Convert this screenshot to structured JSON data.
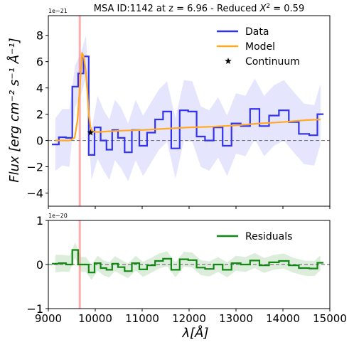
{
  "chart_data": [
    {
      "type": "line",
      "title": "MSA ID:1142 at z = 6.96 - Reduced X² = 0.59",
      "title_parts": {
        "pre": "MSA ID:1142 at z = 6.96 - Reduced ",
        "chi": "X",
        "sup": "2",
        "post": " = 0.59"
      },
      "xlabel": "",
      "ylabel": "Flux [erg cm⁻² s⁻¹ Å⁻¹]",
      "scale_note": "1e−21",
      "xlim": [
        9000,
        15000
      ],
      "ylim": [
        -5,
        9.5
      ],
      "yticks": [
        -4,
        -2,
        0,
        2,
        4,
        6,
        8
      ],
      "vline_x": 9670,
      "zero_line": 0,
      "grid": false,
      "legend_position": "top-right",
      "series": [
        {
          "name": "Data",
          "color": "#3333ee",
          "style": "steps-mid",
          "x": [
            9150,
            9300,
            9450,
            9570,
            9700,
            9800,
            9920,
            10050,
            10180,
            10300,
            10420,
            10550,
            10700,
            10860,
            11020,
            11190,
            11360,
            11530,
            11710,
            11890,
            12070,
            12250,
            12430,
            12620,
            12810,
            13000,
            13200,
            13400,
            13600,
            13810,
            14020,
            14230,
            14450,
            14670,
            14800
          ],
          "y": [
            -0.3,
            0.25,
            0.2,
            4.1,
            5.1,
            6.4,
            -1.1,
            1.0,
            0.0,
            -0.7,
            0.8,
            0.2,
            -0.9,
            0.8,
            -0.4,
            0.6,
            1.6,
            2.2,
            -0.6,
            2.3,
            2.2,
            0.3,
            0.0,
            1.0,
            -0.4,
            1.3,
            1.1,
            2.4,
            1.1,
            1.9,
            2.3,
            1.4,
            0.5,
            0.4,
            2.0
          ],
          "err_lo": [
            -2.3,
            -1.9,
            -2.0,
            2.5,
            3.5,
            4.8,
            -3.0,
            -1.4,
            -2.3,
            -3.0,
            -1.5,
            -2.1,
            -3.1,
            -1.5,
            -2.7,
            -1.7,
            -0.7,
            -0.1,
            -2.9,
            0.0,
            -0.1,
            -2.0,
            -2.3,
            -1.3,
            -2.7,
            -1.0,
            -1.2,
            0.1,
            -1.2,
            -0.4,
            0.0,
            -0.9,
            -1.8,
            -1.9,
            -0.3
          ],
          "err_hi": [
            1.7,
            2.4,
            2.4,
            5.7,
            6.7,
            8.0,
            0.8,
            3.4,
            2.3,
            1.6,
            3.1,
            2.5,
            1.3,
            3.1,
            1.9,
            2.9,
            3.9,
            4.5,
            1.7,
            4.6,
            4.5,
            2.6,
            2.3,
            3.3,
            1.9,
            3.6,
            3.4,
            4.7,
            3.4,
            4.2,
            4.6,
            3.7,
            2.8,
            2.7,
            4.3
          ]
        },
        {
          "name": "Model",
          "color": "#ffaa22",
          "style": "line",
          "x": [
            9150,
            9300,
            9450,
            9560,
            9620,
            9680,
            9720,
            9760,
            9800,
            9830,
            9860,
            9900,
            9940,
            10000,
            10100,
            10300,
            10600,
            11000,
            11500,
            12000,
            12500,
            13000,
            13500,
            14000,
            14500,
            14800
          ],
          "y": [
            0.0,
            0.0,
            0.0,
            0.2,
            1.5,
            4.5,
            6.7,
            6.3,
            5.2,
            3.8,
            2.0,
            1.0,
            0.7,
            0.65,
            0.65,
            0.7,
            0.75,
            0.8,
            0.9,
            1.0,
            1.05,
            1.15,
            1.3,
            1.4,
            1.55,
            1.6
          ]
        },
        {
          "name": "Continuum",
          "color": "#000000",
          "style": "marker-star",
          "x": [
            9900
          ],
          "y": [
            0.6
          ]
        }
      ]
    },
    {
      "type": "line",
      "title": "",
      "xlabel": "λ[Å]",
      "ylabel": "",
      "scale_note": "1e−20",
      "xlim": [
        9000,
        15000
      ],
      "ylim": [
        -1,
        1
      ],
      "yticks": [
        -1,
        0,
        1
      ],
      "xticks": [
        9000,
        10000,
        11000,
        12000,
        13000,
        14000,
        15000
      ],
      "vline_x": 9670,
      "zero_line": 0,
      "grid": false,
      "legend_position": "top-right",
      "series": [
        {
          "name": "Residuals",
          "color": "#118811",
          "style": "steps-mid",
          "x": [
            9150,
            9300,
            9450,
            9570,
            9700,
            9800,
            9920,
            10050,
            10180,
            10300,
            10420,
            10550,
            10700,
            10860,
            11020,
            11190,
            11360,
            11530,
            11710,
            11890,
            12070,
            12250,
            12430,
            12620,
            12810,
            13000,
            13200,
            13400,
            13600,
            13810,
            14020,
            14230,
            14450,
            14670,
            14800
          ],
          "y": [
            0.02,
            0.03,
            0.0,
            0.33,
            0.0,
            0.0,
            -0.18,
            0.03,
            -0.08,
            -0.12,
            0.02,
            -0.06,
            -0.15,
            0.03,
            -0.11,
            -0.02,
            0.08,
            0.13,
            -0.12,
            0.12,
            0.1,
            -0.07,
            -0.1,
            0.0,
            -0.12,
            0.03,
            -0.0,
            0.09,
            -0.02,
            0.05,
            0.08,
            -0.02,
            -0.08,
            -0.09,
            0.04
          ],
          "band_lo": [
            -0.18,
            -0.16,
            -0.17,
            0.16,
            -0.17,
            -0.17,
            -0.35,
            -0.14,
            -0.25,
            -0.29,
            -0.15,
            -0.23,
            -0.31,
            -0.14,
            -0.28,
            -0.19,
            -0.09,
            -0.04,
            -0.29,
            -0.05,
            -0.07,
            -0.24,
            -0.27,
            -0.17,
            -0.29,
            -0.14,
            -0.17,
            -0.08,
            -0.19,
            -0.12,
            -0.09,
            -0.19,
            -0.25,
            -0.26,
            -0.13
          ],
          "band_hi": [
            0.22,
            0.22,
            0.2,
            0.5,
            0.17,
            0.17,
            -0.01,
            0.2,
            0.09,
            0.05,
            0.19,
            0.11,
            0.02,
            0.2,
            0.06,
            0.15,
            0.25,
            0.3,
            0.05,
            0.29,
            0.27,
            0.1,
            0.07,
            0.17,
            0.05,
            0.2,
            0.17,
            0.26,
            0.15,
            0.22,
            0.25,
            0.15,
            0.09,
            0.08,
            0.21
          ]
        }
      ]
    }
  ]
}
